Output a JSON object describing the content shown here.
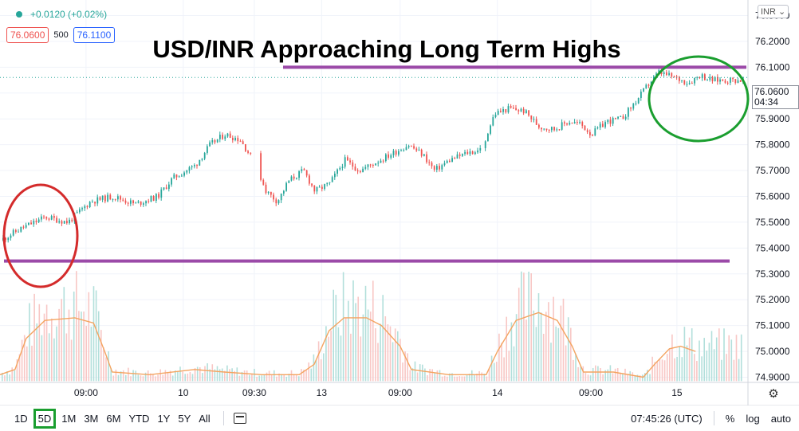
{
  "header": {
    "change": "+0.0120 (+0.02%)",
    "bid": "76.0600",
    "spread": "500",
    "ask": "76.1100",
    "currency": "INR"
  },
  "title": "USD/INR Approaching Long Term Highs",
  "last_price": {
    "value": "76.0600",
    "countdown": "04:34"
  },
  "toolbar": {
    "timeframes": [
      "1D",
      "5D",
      "1M",
      "3M",
      "6M",
      "YTD",
      "1Y",
      "5Y",
      "All"
    ],
    "active_timeframe": "5D",
    "clock": "07:45:26 (UTC)",
    "percent_label": "%",
    "log_label": "log",
    "auto_label": "auto"
  },
  "chart_data": {
    "type": "candlestick",
    "y_ticks": [
      "76.3000",
      "76.2000",
      "76.1000",
      "76.0000",
      "75.9000",
      "75.8000",
      "75.7000",
      "75.6000",
      "75.5000",
      "75.4000",
      "75.3000",
      "75.2000",
      "75.1000",
      "75.0000",
      "74.9000"
    ],
    "ylim": [
      74.88,
      76.36
    ],
    "x_ticks": [
      "09:00",
      "10",
      "09:30",
      "13",
      "09:00",
      "14",
      "09:00",
      "15"
    ],
    "resistance": 76.1,
    "support": 75.35,
    "price_path": [
      [
        0.0,
        75.43
      ],
      [
        0.03,
        75.48
      ],
      [
        0.06,
        75.52
      ],
      [
        0.09,
        75.5
      ],
      [
        0.12,
        75.58
      ],
      [
        0.15,
        75.6
      ],
      [
        0.18,
        75.57
      ],
      [
        0.21,
        75.6
      ],
      [
        0.23,
        75.67
      ],
      [
        0.26,
        75.72
      ],
      [
        0.28,
        75.8
      ],
      [
        0.3,
        75.84
      ],
      [
        0.32,
        75.82
      ],
      [
        0.34,
        75.73
      ],
      [
        0.355,
        75.62
      ],
      [
        0.37,
        75.58
      ],
      [
        0.385,
        75.66
      ],
      [
        0.405,
        75.7
      ],
      [
        0.42,
        75.62
      ],
      [
        0.44,
        75.65
      ],
      [
        0.46,
        75.74
      ],
      [
        0.48,
        75.7
      ],
      [
        0.5,
        75.73
      ],
      [
        0.52,
        75.76
      ],
      [
        0.545,
        75.8
      ],
      [
        0.565,
        75.76
      ],
      [
        0.58,
        75.7
      ],
      [
        0.6,
        75.74
      ],
      [
        0.625,
        75.77
      ],
      [
        0.645,
        75.78
      ],
      [
        0.66,
        75.92
      ],
      [
        0.68,
        75.94
      ],
      [
        0.7,
        75.93
      ],
      [
        0.72,
        75.87
      ],
      [
        0.74,
        75.86
      ],
      [
        0.76,
        75.89
      ],
      [
        0.775,
        75.88
      ],
      [
        0.79,
        75.84
      ],
      [
        0.81,
        75.89
      ],
      [
        0.83,
        75.9
      ],
      [
        0.85,
        75.97
      ],
      [
        0.865,
        76.03
      ],
      [
        0.88,
        76.08
      ],
      [
        0.9,
        76.06
      ],
      [
        0.92,
        76.04
      ],
      [
        0.935,
        76.07
      ],
      [
        0.95,
        76.05
      ]
    ],
    "volume_line": [
      [
        0.0,
        74.91
      ],
      [
        0.02,
        74.93
      ],
      [
        0.035,
        75.05
      ],
      [
        0.06,
        75.12
      ],
      [
        0.1,
        75.13
      ],
      [
        0.125,
        75.11
      ],
      [
        0.14,
        75.0
      ],
      [
        0.15,
        74.92
      ],
      [
        0.2,
        74.91
      ],
      [
        0.26,
        74.93
      ],
      [
        0.3,
        74.92
      ],
      [
        0.35,
        74.91
      ],
      [
        0.4,
        74.91
      ],
      [
        0.42,
        74.95
      ],
      [
        0.44,
        75.08
      ],
      [
        0.46,
        75.13
      ],
      [
        0.49,
        75.13
      ],
      [
        0.51,
        75.1
      ],
      [
        0.535,
        75.02
      ],
      [
        0.55,
        74.93
      ],
      [
        0.6,
        74.91
      ],
      [
        0.65,
        74.91
      ],
      [
        0.665,
        75.0
      ],
      [
        0.69,
        75.12
      ],
      [
        0.72,
        75.15
      ],
      [
        0.745,
        75.12
      ],
      [
        0.765,
        75.02
      ],
      [
        0.78,
        74.92
      ],
      [
        0.82,
        74.92
      ],
      [
        0.86,
        74.9
      ],
      [
        0.875,
        74.95
      ],
      [
        0.895,
        75.01
      ],
      [
        0.91,
        75.02
      ],
      [
        0.93,
        75.0
      ]
    ]
  }
}
